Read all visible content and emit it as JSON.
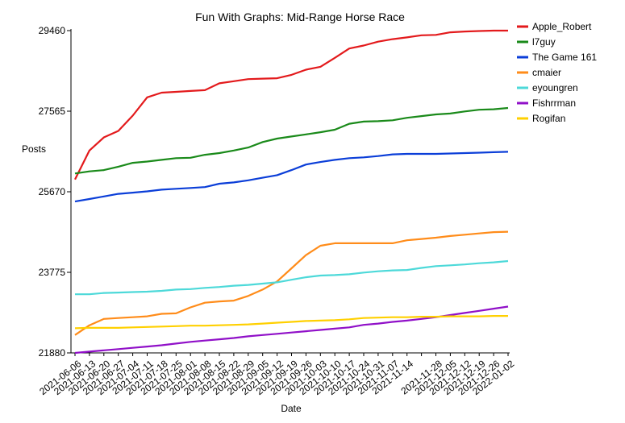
{
  "chart_data": {
    "type": "line",
    "title": "Fun With Graphs: Mid-Range Horse Race",
    "xlabel": "Date",
    "ylabel": "Posts",
    "ylim": [
      21880,
      29460
    ],
    "yticks": [
      21880,
      23775,
      25670,
      27565,
      29460
    ],
    "grid": false,
    "legend_position": "top-right",
    "x": [
      "2021-06-06",
      "2021-06-13",
      "2021-06-20",
      "2021-06-27",
      "2021-07-04",
      "2021-07-11",
      "2021-07-18",
      "2021-07-25",
      "2021-08-01",
      "2021-08-08",
      "2021-08-15",
      "2021-08-22",
      "2021-08-29",
      "2021-09-05",
      "2021-09-12",
      "2021-09-19",
      "2021-09-26",
      "2021-10-03",
      "2021-10-10",
      "2021-10-17",
      "2021-10-24",
      "2021-10-31",
      "2021-11-07",
      "2021-11-14",
      "2021-11-21",
      "2021-11-28",
      "2021-12-05",
      "2021-12-12",
      "2021-12-19",
      "2021-12-26",
      "2022-01-02"
    ],
    "xtick_labels": [
      "2021-06-06",
      "2021-06-13",
      "2021-06-20",
      "2021-06-27",
      "2021-07-04",
      "2021-07-11",
      "2021-07-18",
      "2021-07-25",
      "2021-08-01",
      "2021-08-08",
      "2021-08-15",
      "2021-08-22",
      "2021-08-29",
      "2021-09-05",
      "2021-09-12",
      "2021-09-19",
      "2021-09-26",
      "2021-10-03",
      "2021-10-10",
      "2021-10-17",
      "2021-10-24",
      "2021-10-31",
      "2021-11-07",
      "2021-11-14",
      "",
      "2021-11-28",
      "2021-12-05",
      "2021-12-12",
      "2021-12-19",
      "2021-12-26",
      "2022-01-02"
    ],
    "series": [
      {
        "name": "Apple_Robert",
        "color": "#e31a1c",
        "values": [
          25960,
          26640,
          26950,
          27100,
          27460,
          27890,
          28000,
          28020,
          28040,
          28060,
          28220,
          28270,
          28320,
          28330,
          28340,
          28420,
          28540,
          28610,
          28820,
          29040,
          29110,
          29200,
          29260,
          29300,
          29350,
          29360,
          29420,
          29440,
          29450,
          29460,
          29460
        ]
      },
      {
        "name": "l7guy",
        "color": "#1a8a1a",
        "values": [
          26100,
          26150,
          26180,
          26260,
          26350,
          26380,
          26420,
          26460,
          26470,
          26540,
          26580,
          26640,
          26710,
          26840,
          26920,
          26970,
          27020,
          27070,
          27130,
          27270,
          27320,
          27330,
          27350,
          27410,
          27450,
          27490,
          27510,
          27560,
          27600,
          27610,
          27640
        ]
      },
      {
        "name": "The Game 161",
        "color": "#0b3ed8",
        "values": [
          25440,
          25500,
          25560,
          25620,
          25650,
          25680,
          25720,
          25740,
          25760,
          25780,
          25860,
          25890,
          25940,
          26000,
          26060,
          26180,
          26310,
          26370,
          26420,
          26460,
          26480,
          26510,
          26550,
          26560,
          26560,
          26560,
          26570,
          26580,
          26590,
          26600,
          26610
        ]
      },
      {
        "name": "cmaier",
        "color": "#ff8c1a",
        "values": [
          22300,
          22530,
          22680,
          22700,
          22720,
          22740,
          22800,
          22810,
          22950,
          23060,
          23090,
          23110,
          23220,
          23370,
          23560,
          23870,
          24180,
          24400,
          24460,
          24460,
          24460,
          24460,
          24460,
          24530,
          24560,
          24590,
          24630,
          24660,
          24690,
          24720,
          24730
        ]
      },
      {
        "name": "eyoungren",
        "color": "#4dd9d9",
        "values": [
          23260,
          23260,
          23290,
          23300,
          23310,
          23320,
          23340,
          23370,
          23380,
          23410,
          23430,
          23460,
          23480,
          23510,
          23540,
          23600,
          23660,
          23700,
          23710,
          23730,
          23770,
          23800,
          23820,
          23830,
          23880,
          23920,
          23940,
          23960,
          23990,
          24010,
          24040
        ]
      },
      {
        "name": "Fishrrman",
        "color": "#9010c8",
        "values": [
          21880,
          21910,
          21940,
          21970,
          22000,
          22030,
          22060,
          22100,
          22140,
          22170,
          22200,
          22230,
          22270,
          22300,
          22330,
          22360,
          22390,
          22420,
          22450,
          22480,
          22540,
          22570,
          22610,
          22640,
          22680,
          22720,
          22770,
          22820,
          22870,
          22920,
          22970
        ]
      },
      {
        "name": "Rogifan",
        "color": "#ffd000",
        "values": [
          22460,
          22470,
          22470,
          22470,
          22480,
          22490,
          22500,
          22510,
          22520,
          22520,
          22530,
          22540,
          22550,
          22570,
          22590,
          22610,
          22630,
          22640,
          22650,
          22670,
          22700,
          22710,
          22720,
          22720,
          22730,
          22730,
          22740,
          22740,
          22740,
          22750,
          22750
        ]
      }
    ]
  }
}
